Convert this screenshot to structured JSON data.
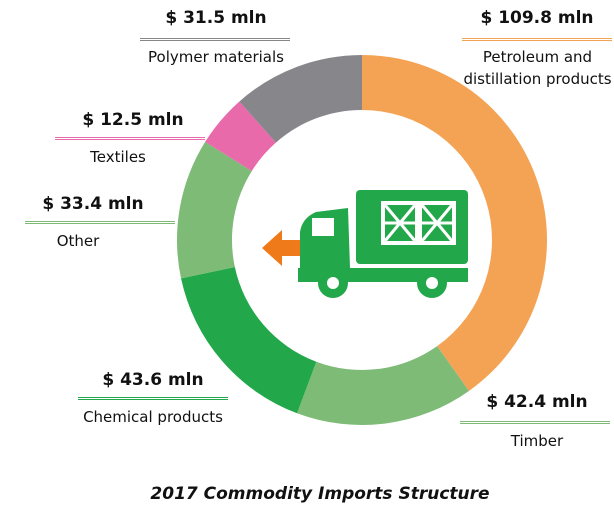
{
  "chart_data": {
    "type": "pie",
    "title": "2017 Commodity Imports Structure",
    "categories": [
      "Petroleum and distillation products",
      "Timber",
      "Chemical products",
      "Other",
      "Textiles",
      "Polymer materials"
    ],
    "values": [
      109.8,
      42.4,
      43.6,
      33.4,
      12.5,
      31.5
    ],
    "value_labels": [
      "$ 109.8 mln",
      "$ 42.4 mln",
      "$ 43.6 mln",
      "$ 33.4 mln",
      "$ 12.5 mln",
      "$ 31.5 mln"
    ],
    "colors": [
      "#f4a355",
      "#7dbb77",
      "#22a84a",
      "#7dbb77",
      "#e96aaa",
      "#87868a"
    ]
  }
}
